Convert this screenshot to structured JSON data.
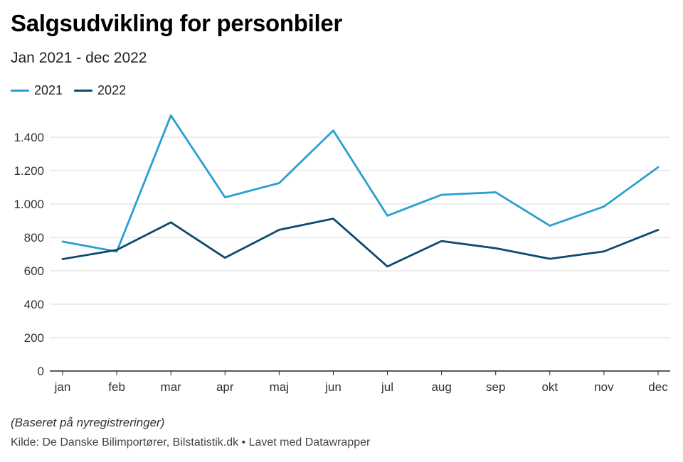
{
  "title": "Salgsudvikling for personbiler",
  "subtitle": "Jan 2021 - dec 2022",
  "note": "(Baseret på nyregistreringer)",
  "source": "Kilde: De Danske Bilimportører, Bilstatistik.dk • Lavet med Datawrapper",
  "colors": {
    "s2021": "#2a9fd0",
    "s2022": "#0d4a6e",
    "grid": "#d9d9d9",
    "axis": "#222222"
  },
  "chart_data": {
    "type": "line",
    "categories": [
      "jan",
      "feb",
      "mar",
      "apr",
      "maj",
      "jun",
      "jul",
      "aug",
      "sep",
      "okt",
      "nov",
      "dec"
    ],
    "series": [
      {
        "name": "2021",
        "values": [
          775,
          715,
          1530,
          1040,
          1125,
          1440,
          930,
          1055,
          1070,
          870,
          985,
          1220
        ]
      },
      {
        "name": "2022",
        "values": [
          670,
          725,
          890,
          678,
          845,
          912,
          626,
          778,
          735,
          672,
          716,
          845
        ]
      }
    ],
    "ylim": [
      0,
      1400
    ],
    "yticks": [
      0,
      200,
      400,
      600,
      800,
      1000,
      1200,
      1400
    ],
    "ytick_labels": [
      "0",
      "200",
      "400",
      "600",
      "800",
      "1.000",
      "1.200",
      "1.400"
    ],
    "grid": true,
    "legend_position": "top-left"
  }
}
